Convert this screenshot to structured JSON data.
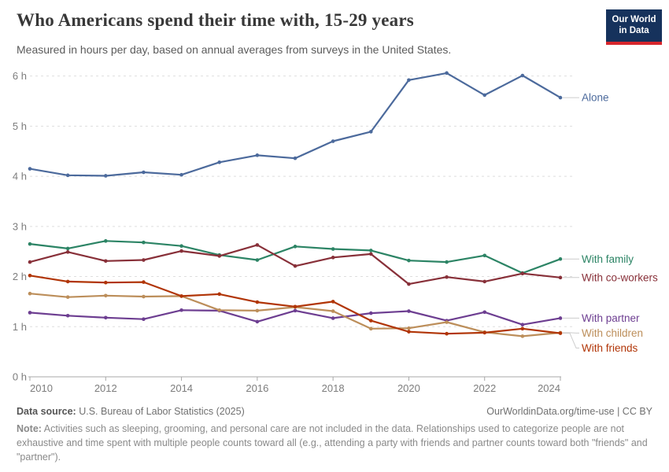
{
  "header": {
    "title": "Who Americans spend their time with, 15-29 years",
    "subtitle": "Measured in hours per day, based on annual averages from surveys in the United States.",
    "logo": {
      "line1": "Our World",
      "line2": "in Data"
    }
  },
  "chart_data": {
    "type": "line",
    "title": "Who Americans spend their time with, 15-29 years",
    "xlabel": "",
    "ylabel": "hours per day",
    "x": [
      2010,
      2011,
      2012,
      2013,
      2014,
      2015,
      2016,
      2017,
      2018,
      2019,
      2020,
      2021,
      2022,
      2023,
      2024
    ],
    "xticks": [
      2010,
      2012,
      2014,
      2016,
      2018,
      2020,
      2022,
      2024
    ],
    "ylim": [
      0,
      6.3
    ],
    "ytick_labels": [
      "0 h",
      "1 h",
      "2 h",
      "3 h",
      "4 h",
      "5 h",
      "6 h"
    ],
    "grid": "dashed horizontal",
    "legend_position": "right-of-line-ends",
    "series": [
      {
        "id": "alone",
        "label": "Alone",
        "color": "#4C6A9C",
        "values": [
          4.15,
          4.02,
          4.01,
          4.08,
          4.03,
          4.28,
          4.42,
          4.36,
          4.7,
          4.89,
          5.92,
          6.06,
          5.62,
          6.01,
          5.57
        ]
      },
      {
        "id": "with-family",
        "label": "With family",
        "color": "#2C8465",
        "values": [
          2.65,
          2.56,
          2.71,
          2.68,
          2.61,
          2.43,
          2.33,
          2.6,
          2.55,
          2.52,
          2.32,
          2.29,
          2.42,
          2.07,
          2.35
        ]
      },
      {
        "id": "with-co-workers",
        "label": "With co-workers",
        "color": "#883039",
        "values": [
          2.29,
          2.49,
          2.31,
          2.33,
          2.51,
          2.41,
          2.63,
          2.21,
          2.38,
          2.45,
          1.85,
          1.99,
          1.9,
          2.06,
          1.98
        ]
      },
      {
        "id": "with-partner",
        "label": "With partner",
        "color": "#6D3E91",
        "values": [
          1.28,
          1.22,
          1.18,
          1.15,
          1.33,
          1.32,
          1.1,
          1.32,
          1.17,
          1.27,
          1.31,
          1.12,
          1.29,
          1.04,
          1.17
        ]
      },
      {
        "id": "with-children",
        "label": "With children",
        "color": "#BC8E5A",
        "values": [
          1.66,
          1.59,
          1.62,
          1.6,
          1.61,
          1.33,
          1.32,
          1.39,
          1.31,
          0.96,
          0.97,
          1.09,
          0.89,
          0.81,
          0.88
        ]
      },
      {
        "id": "with-friends",
        "label": "With friends",
        "color": "#B13507",
        "values": [
          2.02,
          1.9,
          1.88,
          1.89,
          1.61,
          1.65,
          1.49,
          1.4,
          1.5,
          1.12,
          0.9,
          0.86,
          0.88,
          0.96,
          0.87
        ]
      }
    ]
  },
  "footer": {
    "source_label": "Data source:",
    "source_text": " U.S. Bureau of Labor Statistics (2025)",
    "link": "OurWorldinData.org/time-use | CC BY",
    "note_label": "Note:",
    "note_text": " Activities such as sleeping, grooming, and personal care are not included in the data. Relationships used to categorize people are not exhaustive and time spent with multiple people counts toward all (e.g., attending a party with friends and partner counts toward both \"friends\" and \"partner\")."
  }
}
